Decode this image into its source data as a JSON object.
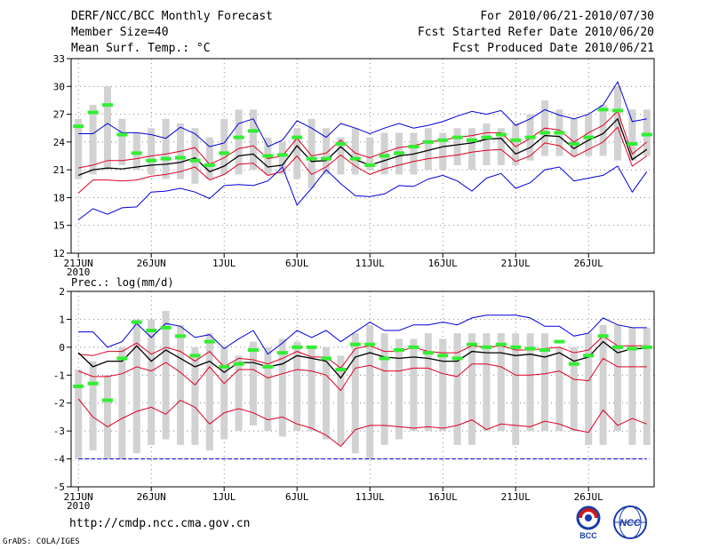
{
  "header": {
    "left": [
      "DERF/NCC/BCC Monthly Forecast",
      "Member Size=40",
      "Mean Surf. Temp.: °C"
    ],
    "right": [
      "For 2010/06/21-2010/07/30",
      "Fcst Started Refer Date 2010/06/20",
      "Fcst Produced Date 2010/06/21"
    ]
  },
  "footer": {
    "url": "http://cmdp.ncc.cma.gov.cn",
    "grads": "GrADS: COLA/IGES",
    "logo_bcc": "BCC",
    "logo_ncc": "NCC"
  },
  "colors": {
    "max_min": "#0000dd",
    "spread": "#dd0022",
    "mean": "#000000",
    "box": "#d2d2d2",
    "obs": "#33ee33"
  },
  "chart_data": [
    {
      "type": "line",
      "title": "Mean Surf. Temp.: °C",
      "ylim": [
        12,
        33
      ],
      "yticks": [
        12,
        15,
        18,
        21,
        24,
        27,
        30,
        33
      ],
      "xlim": [
        0.5,
        40.5
      ],
      "xticks": [
        {
          "day": 1,
          "label": "21JUN",
          "sub": "2010"
        },
        {
          "day": 6,
          "label": "26JUN"
        },
        {
          "day": 11,
          "label": "1JUL"
        },
        {
          "day": 16,
          "label": "6JUL"
        },
        {
          "day": 21,
          "label": "11JUL"
        },
        {
          "day": 26,
          "label": "16JUL"
        },
        {
          "day": 31,
          "label": "21JUL"
        },
        {
          "day": 36,
          "label": "26JUL"
        }
      ],
      "box_low": [
        20.0,
        20.5,
        21.0,
        21.5,
        21.0,
        20.5,
        20.0,
        20.0,
        19.5,
        20.0,
        20.5,
        20.5,
        21.0,
        20.5,
        20.5,
        20.0,
        19.0,
        20.5,
        20.5,
        20.5,
        21.0,
        20.5,
        20.5,
        20.5,
        21.0,
        21.0,
        21.5,
        21.0,
        21.5,
        21.5,
        21.5,
        22.0,
        22.5,
        22.5,
        22.5,
        22.5,
        22.5,
        22.0,
        22.0,
        22.5
      ],
      "box_high": [
        26.5,
        28.0,
        30.0,
        26.5,
        25.0,
        25.5,
        26.5,
        26.0,
        25.5,
        24.5,
        26.5,
        27.5,
        27.5,
        24.5,
        24.0,
        25.5,
        26.5,
        25.5,
        24.5,
        25.5,
        24.5,
        25.0,
        25.0,
        25.0,
        25.5,
        25.0,
        25.5,
        25.5,
        26.0,
        25.5,
        26.0,
        27.0,
        28.5,
        27.5,
        26.5,
        27.0,
        28.0,
        30.0,
        27.5,
        27.5
      ],
      "obs": [
        25.7,
        27.2,
        28.0,
        24.8,
        22.8,
        22.0,
        22.2,
        22.3,
        22.0,
        21.5,
        22.8,
        24.5,
        25.2,
        22.5,
        22.6,
        24.5,
        22.2,
        22.2,
        23.8,
        22.2,
        21.5,
        22.5,
        22.8,
        23.5,
        24.0,
        24.2,
        24.5,
        24.2,
        24.5,
        24.8,
        24.2,
        24.5,
        25.0,
        25.0,
        23.8,
        24.5,
        27.5,
        27.4,
        23.8,
        24.8
      ],
      "series": [
        {
          "name": "max",
          "color": "#0000dd",
          "values": [
            24.9,
            24.9,
            26.0,
            25.0,
            25.0,
            24.8,
            24.4,
            25.6,
            24.9,
            23.5,
            23.9,
            26.0,
            26.5,
            23.5,
            24.2,
            26.3,
            25.5,
            24.5,
            26.0,
            25.5,
            24.9,
            25.5,
            26.0,
            25.5,
            25.8,
            26.2,
            26.8,
            27.3,
            27.0,
            27.4,
            25.8,
            26.5,
            27.5,
            26.9,
            26.5,
            27.0,
            28.0,
            30.5,
            26.2,
            26.5
          ]
        },
        {
          "name": "spread-high",
          "color": "#dd0022",
          "values": [
            21.2,
            21.5,
            22.0,
            22.0,
            22.2,
            22.5,
            22.7,
            23.0,
            23.4,
            21.6,
            22.3,
            23.3,
            23.6,
            22.2,
            22.5,
            24.4,
            22.5,
            22.8,
            24.2,
            22.8,
            22.3,
            22.9,
            23.4,
            23.6,
            24.0,
            24.2,
            24.5,
            24.7,
            25.0,
            25.0,
            23.5,
            24.4,
            25.5,
            25.3,
            24.0,
            25.0,
            25.8,
            27.3,
            22.7,
            24.0
          ]
        },
        {
          "name": "mean",
          "color": "#000000",
          "values": [
            20.4,
            21.0,
            21.2,
            21.1,
            21.3,
            21.5,
            21.6,
            21.8,
            22.3,
            20.8,
            21.4,
            22.5,
            22.7,
            21.3,
            21.5,
            23.6,
            21.9,
            22.0,
            23.5,
            22.1,
            21.5,
            22.0,
            22.5,
            22.7,
            23.1,
            23.5,
            23.7,
            23.9,
            24.3,
            24.4,
            22.7,
            23.4,
            24.7,
            24.6,
            23.3,
            24.2,
            24.9,
            26.5,
            22.1,
            23.2
          ]
        },
        {
          "name": "spread-low",
          "color": "#dd0022",
          "values": [
            18.5,
            19.9,
            19.9,
            19.8,
            19.9,
            20.3,
            20.5,
            20.8,
            21.3,
            19.9,
            20.5,
            21.6,
            21.7,
            20.4,
            20.8,
            22.5,
            20.5,
            21.3,
            22.6,
            21.4,
            20.5,
            21.1,
            21.5,
            21.9,
            22.2,
            22.4,
            22.6,
            22.9,
            23.1,
            23.2,
            21.9,
            22.5,
            23.9,
            23.6,
            22.4,
            23.2,
            24.0,
            25.6,
            21.4,
            22.5
          ]
        },
        {
          "name": "min",
          "color": "#0000dd",
          "values": [
            15.6,
            16.8,
            16.2,
            16.9,
            17.0,
            18.6,
            18.7,
            19.0,
            18.6,
            17.9,
            19.3,
            19.4,
            19.3,
            19.8,
            21.3,
            17.2,
            19.0,
            21.0,
            19.5,
            18.2,
            18.1,
            18.4,
            19.3,
            19.2,
            20.0,
            20.4,
            19.8,
            18.7,
            20.1,
            20.6,
            19.0,
            19.6,
            21.0,
            21.3,
            19.8,
            20.1,
            20.4,
            21.4,
            18.6,
            20.8
          ]
        }
      ]
    },
    {
      "type": "line",
      "title": "Prec.: log(mm/d)",
      "ylim": [
        -5,
        2
      ],
      "yticks": [
        -5,
        -4,
        -3,
        -2,
        -1,
        0,
        1,
        2
      ],
      "xlim": [
        0.5,
        40.5
      ],
      "xticks": [
        {
          "day": 1,
          "label": "21JUN",
          "sub": "2010"
        },
        {
          "day": 6,
          "label": "26JUN"
        },
        {
          "day": 11,
          "label": "1JUL"
        },
        {
          "day": 16,
          "label": "6JUL"
        },
        {
          "day": 21,
          "label": "11JUL"
        },
        {
          "day": 26,
          "label": "16JUL"
        },
        {
          "day": 31,
          "label": "21JUL"
        },
        {
          "day": 36,
          "label": "26JUL"
        }
      ],
      "box_low": [
        -4.0,
        -3.7,
        -4.0,
        -4.0,
        -3.8,
        -3.5,
        -3.3,
        -3.5,
        -3.5,
        -3.7,
        -3.3,
        -3.0,
        -2.8,
        -3.0,
        -3.2,
        -3.0,
        -3.0,
        -3.3,
        -3.5,
        -3.8,
        -4.0,
        -3.5,
        -3.3,
        -3.0,
        -3.0,
        -3.0,
        -3.5,
        -3.5,
        -3.0,
        -3.0,
        -3.5,
        -3.0,
        -3.0,
        -3.0,
        -3.0,
        -3.5,
        -3.5,
        -3.0,
        -3.5,
        -3.5
      ],
      "box_high": [
        -0.8,
        -0.5,
        -1.0,
        0.0,
        1.0,
        1.0,
        1.3,
        0.8,
        0.0,
        0.5,
        0.0,
        -0.3,
        0.2,
        0.0,
        0.3,
        0.2,
        0.0,
        0.0,
        -0.3,
        0.5,
        0.8,
        0.5,
        0.3,
        0.3,
        0.5,
        0.3,
        0.5,
        0.5,
        0.5,
        0.5,
        0.5,
        0.5,
        0.5,
        0.0,
        0.0,
        0.5,
        0.8,
        0.8,
        0.7,
        0.7
      ],
      "obs": [
        -1.4,
        -1.3,
        -1.9,
        -0.4,
        0.9,
        0.6,
        0.7,
        0.4,
        -0.3,
        0.2,
        -0.7,
        -0.6,
        -0.1,
        -0.7,
        -0.2,
        0.0,
        0.0,
        -0.4,
        -0.8,
        0.1,
        0.1,
        -0.4,
        -0.1,
        0.0,
        -0.2,
        -0.3,
        -0.4,
        0.1,
        0.0,
        0.1,
        0.0,
        -0.05,
        -0.1,
        0.2,
        -0.6,
        -0.3,
        0.4,
        0.0,
        -0.05,
        0.0
      ],
      "series": [
        {
          "name": "max",
          "color": "#0000dd",
          "values": [
            0.55,
            0.55,
            0.0,
            0.2,
            0.85,
            0.35,
            0.85,
            0.75,
            0.35,
            0.45,
            -0.05,
            0.3,
            0.6,
            -0.25,
            0.15,
            0.6,
            0.35,
            0.6,
            0.2,
            0.55,
            0.9,
            0.6,
            0.6,
            0.8,
            0.8,
            0.9,
            0.8,
            1.05,
            1.15,
            1.15,
            1.15,
            1.05,
            0.75,
            0.75,
            0.4,
            0.5,
            1.05,
            0.8,
            0.7,
            0.7
          ]
        },
        {
          "name": "spread-high",
          "color": "#dd0022",
          "values": [
            -0.25,
            -0.3,
            -0.15,
            -0.15,
            0.15,
            -0.25,
            0.0,
            -0.15,
            -0.5,
            -0.15,
            -0.7,
            -0.4,
            -0.45,
            -0.6,
            -0.4,
            -0.15,
            -0.35,
            -0.35,
            -0.75,
            -0.05,
            0.05,
            -0.15,
            -0.15,
            0.0,
            -0.15,
            -0.2,
            -0.2,
            0.05,
            0.0,
            0.05,
            -0.1,
            -0.1,
            -0.05,
            0.0,
            -0.2,
            -0.1,
            0.4,
            0.05,
            0.05,
            0.05
          ]
        },
        {
          "name": "mean",
          "color": "#000000",
          "values": [
            -0.2,
            -0.7,
            -0.5,
            -0.5,
            0.05,
            -0.5,
            -0.1,
            -0.4,
            -0.7,
            -0.5,
            -0.9,
            -0.55,
            -0.55,
            -0.7,
            -0.6,
            -0.3,
            -0.4,
            -0.5,
            -1.1,
            -0.35,
            -0.2,
            -0.35,
            -0.4,
            -0.35,
            -0.4,
            -0.5,
            -0.5,
            -0.15,
            -0.2,
            -0.2,
            -0.3,
            -0.25,
            -0.35,
            -0.2,
            -0.5,
            -0.35,
            0.2,
            -0.2,
            -0.05,
            -0.05
          ]
        },
        {
          "name": "spread-low",
          "color": "#dd0022",
          "values": [
            -0.85,
            -1.05,
            -1.05,
            -0.95,
            -0.7,
            -0.85,
            -0.55,
            -0.9,
            -1.35,
            -0.7,
            -1.3,
            -0.8,
            -0.8,
            -1.1,
            -0.95,
            -0.8,
            -0.85,
            -1.0,
            -1.55,
            -0.75,
            -0.65,
            -0.85,
            -0.85,
            -0.75,
            -0.75,
            -0.95,
            -1.05,
            -0.6,
            -0.6,
            -0.7,
            -1.0,
            -1.0,
            -0.95,
            -0.85,
            -1.15,
            -1.2,
            -0.4,
            -0.7,
            -0.7,
            -0.7
          ]
        },
        {
          "name": "min",
          "color": "#dd0022",
          "values": [
            -1.85,
            -2.5,
            -2.85,
            -2.55,
            -2.3,
            -2.15,
            -2.4,
            -1.9,
            -2.15,
            -2.75,
            -2.35,
            -2.2,
            -2.35,
            -2.6,
            -2.5,
            -2.75,
            -2.9,
            -3.15,
            -3.55,
            -2.95,
            -2.8,
            -2.8,
            -2.85,
            -2.9,
            -2.85,
            -2.9,
            -2.8,
            -2.6,
            -2.95,
            -2.75,
            -2.8,
            -2.85,
            -2.65,
            -2.75,
            -2.95,
            -3.05,
            -2.25,
            -2.8,
            -2.55,
            -2.75
          ]
        },
        {
          "name": "floor",
          "color": "#0000dd",
          "dashed": true,
          "values": [
            -4,
            -4,
            -4,
            -4,
            -4,
            -4,
            -4,
            -4,
            -4,
            -4,
            -4,
            -4,
            -4,
            -4,
            -4,
            -4,
            -4,
            -4,
            -4,
            -4,
            -4,
            -4,
            -4,
            -4,
            -4,
            -4,
            -4,
            -4,
            -4,
            -4,
            -4,
            -4,
            -4,
            -4,
            -4,
            -4,
            -4,
            -4,
            -4,
            -4
          ]
        }
      ]
    }
  ]
}
